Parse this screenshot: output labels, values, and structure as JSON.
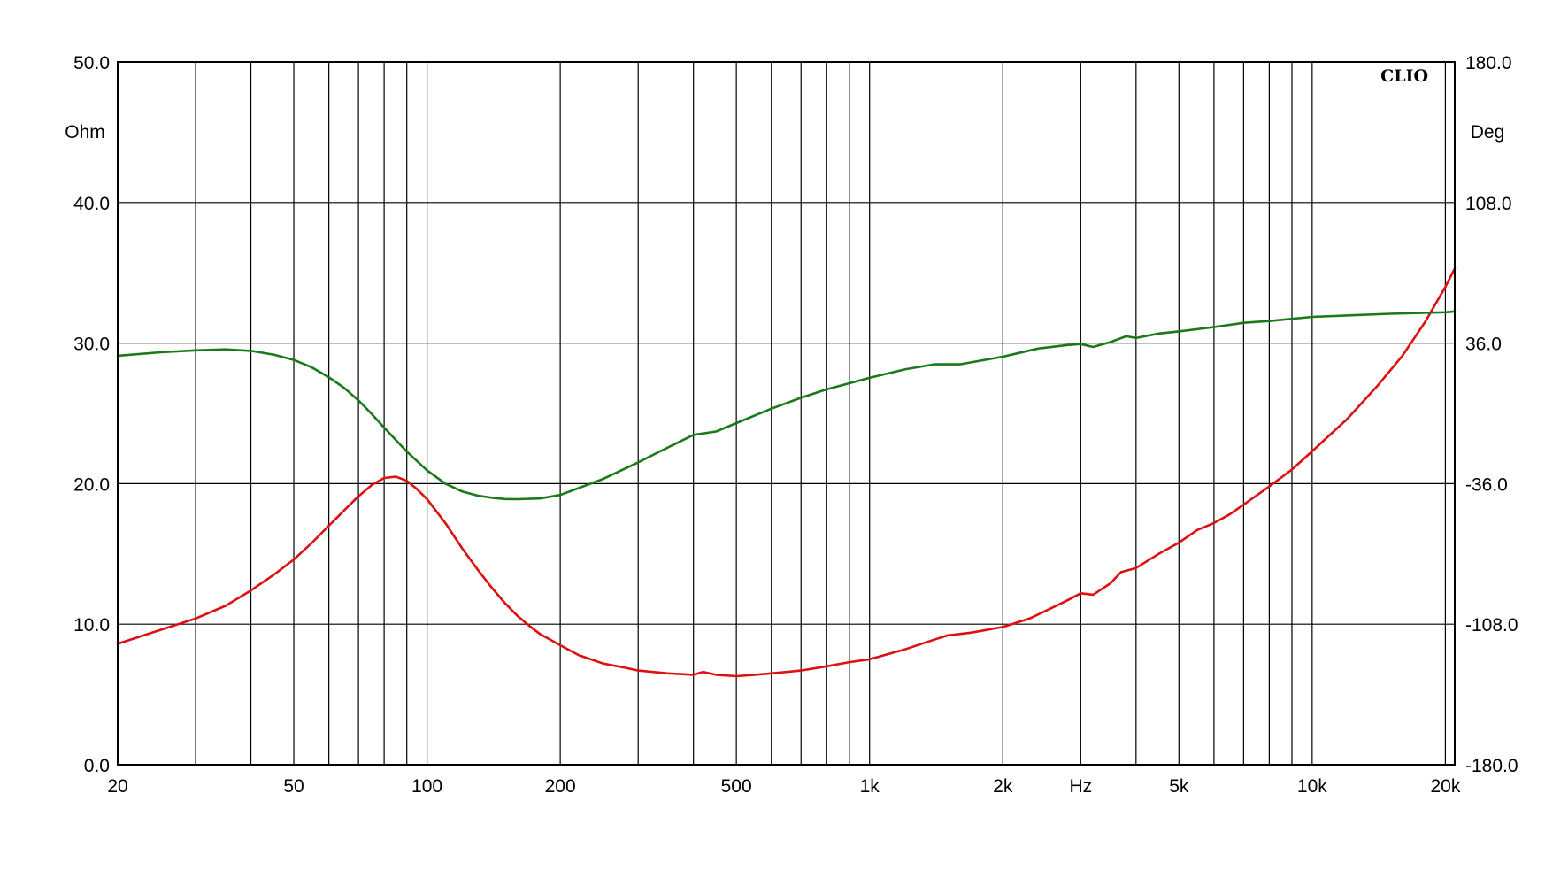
{
  "brand": "CLIO",
  "chart_data": {
    "type": "line",
    "xscale": "log",
    "xlim": [
      20,
      21000
    ],
    "x_tick_labels": [
      {
        "value": 20,
        "label": "20"
      },
      {
        "value": 50,
        "label": "50"
      },
      {
        "value": 100,
        "label": "100"
      },
      {
        "value": 200,
        "label": "200"
      },
      {
        "value": 500,
        "label": "500"
      },
      {
        "value": 1000,
        "label": "1k"
      },
      {
        "value": 2000,
        "label": "2k"
      },
      {
        "value": 3000,
        "label": "Hz"
      },
      {
        "value": 5000,
        "label": "5k"
      },
      {
        "value": 10000,
        "label": "10k"
      },
      {
        "value": 20000,
        "label": "20k"
      }
    ],
    "x_gridlines": [
      30,
      40,
      50,
      60,
      70,
      80,
      90,
      100,
      200,
      300,
      400,
      500,
      600,
      700,
      800,
      900,
      1000,
      2000,
      3000,
      4000,
      5000,
      6000,
      7000,
      8000,
      9000,
      10000,
      20000
    ],
    "ylabel_left": "Ohm",
    "ylim_left": [
      0,
      50
    ],
    "y_ticks_left": [
      "0.0",
      "10.0",
      "20.0",
      "30.0",
      "40.0",
      "50.0"
    ],
    "ylabel_right": "Deg",
    "ylim_right": [
      -180,
      180
    ],
    "y_ticks_right": [
      "-180.0",
      "-108.0",
      "-36.0",
      "36.0",
      "108.0",
      "180.0"
    ],
    "grid": true,
    "series": [
      {
        "axis": "left",
        "color": "#dd1111",
        "x": [
          20,
          25,
          30,
          35,
          40,
          45,
          50,
          55,
          60,
          65,
          70,
          75,
          80,
          85,
          90,
          95,
          100,
          110,
          120,
          130,
          140,
          150,
          160,
          170,
          180,
          200,
          220,
          250,
          280,
          300,
          350,
          400,
          420,
          450,
          500,
          550,
          600,
          700,
          800,
          900,
          1000,
          1200,
          1400,
          1500,
          1700,
          2000,
          2300,
          2600,
          2800,
          3000,
          3200,
          3500,
          3700,
          4000,
          4500,
          5000,
          5500,
          6000,
          6500,
          7000,
          8000,
          9000,
          10000,
          12000,
          14000,
          16000,
          18000,
          20000,
          21000
        ],
        "values": [
          8.6,
          9.6,
          10.4,
          11.3,
          12.4,
          13.5,
          14.6,
          15.8,
          17.0,
          18.1,
          19.1,
          19.9,
          20.4,
          20.5,
          20.2,
          19.6,
          18.9,
          17.2,
          15.4,
          13.9,
          12.6,
          11.5,
          10.6,
          9.9,
          9.3,
          8.5,
          7.8,
          7.2,
          6.9,
          6.7,
          6.5,
          6.4,
          6.6,
          6.4,
          6.3,
          6.4,
          6.5,
          6.7,
          7.0,
          7.3,
          7.5,
          8.2,
          8.9,
          9.2,
          9.4,
          9.8,
          10.4,
          11.2,
          11.7,
          12.2,
          12.1,
          12.9,
          13.7,
          14.0,
          15.0,
          15.8,
          16.7,
          17.2,
          17.8,
          18.5,
          19.8,
          21.0,
          22.3,
          24.6,
          26.9,
          29.1,
          31.5,
          34.0,
          35.3
        ]
      },
      {
        "axis": "right",
        "color": "#1a7a1a",
        "x": [
          20,
          25,
          30,
          35,
          40,
          45,
          50,
          55,
          60,
          65,
          70,
          75,
          80,
          90,
          100,
          110,
          120,
          130,
          140,
          150,
          160,
          180,
          200,
          250,
          300,
          350,
          400,
          450,
          500,
          600,
          700,
          800,
          1000,
          1200,
          1400,
          1600,
          2000,
          2400,
          2800,
          3000,
          3200,
          3500,
          3800,
          4000,
          4500,
          5000,
          6000,
          7000,
          8000,
          10000,
          15000,
          20000,
          21000
        ],
        "values": [
          29.5,
          31.3,
          32.3,
          32.8,
          32.0,
          30.1,
          27.4,
          23.5,
          18.5,
          13.0,
          6.6,
          -0.3,
          -7.3,
          -19.6,
          -29.2,
          -36.0,
          -40.0,
          -42.1,
          -43.2,
          -43.9,
          -44.0,
          -43.6,
          -41.8,
          -33.6,
          -25.1,
          -17.5,
          -11.0,
          -9.3,
          -5.0,
          2.4,
          8.0,
          12.3,
          18.2,
          22.5,
          25.1,
          25.1,
          29.0,
          33.2,
          35.0,
          35.5,
          34.0,
          36.5,
          39.5,
          38.6,
          40.9,
          42.0,
          44.2,
          46.4,
          47.3,
          49.4,
          51.0,
          51.8,
          52.2
        ]
      }
    ]
  }
}
